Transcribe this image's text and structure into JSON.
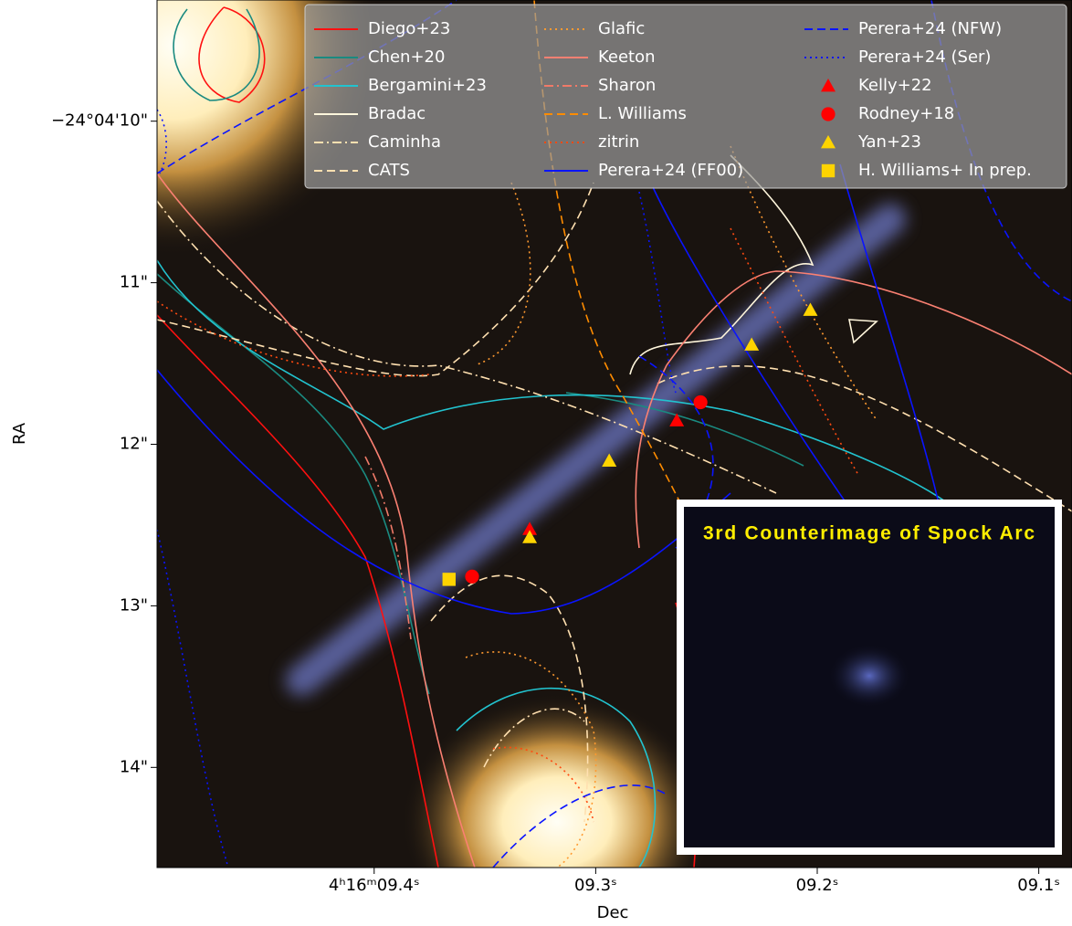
{
  "chart_data": {
    "type": "scatter",
    "x_label": "Dec",
    "y_label": "RA",
    "annotation": "3rd Counterimage of Spock Arc",
    "xlim": [
      9.498,
      9.085
    ],
    "ylim": [
      14.62,
      9.25
    ],
    "xticks": [
      {
        "value": 9.4,
        "label": "4ʰ16ᵐ09.4ˢ"
      },
      {
        "value": 9.3,
        "label": "09.3ˢ"
      },
      {
        "value": 9.2,
        "label": "09.2ˢ"
      },
      {
        "value": 9.1,
        "label": "09.1ˢ"
      }
    ],
    "yticks": [
      {
        "value": 10,
        "label": "−24°04'10\""
      },
      {
        "value": 11,
        "label": "11\""
      },
      {
        "value": 12,
        "label": "12\""
      },
      {
        "value": 13,
        "label": "13\""
      },
      {
        "value": 14,
        "label": "14\""
      }
    ],
    "series": [
      {
        "name": "Diego+23",
        "color": "#ff1010",
        "style": "solid"
      },
      {
        "name": "Chen+20",
        "color": "#1a8a80",
        "style": "solid"
      },
      {
        "name": "Bergamini+23",
        "color": "#22c3cf",
        "style": "solid"
      },
      {
        "name": "Bradac",
        "color": "#fff6dc",
        "style": "solid"
      },
      {
        "name": "Caminha",
        "color": "#ffe0b0",
        "style": "dashdot"
      },
      {
        "name": "CATS",
        "color": "#ffe0b0",
        "style": "dashed"
      },
      {
        "name": "Glafic",
        "color": "#ff9a30",
        "style": "dotted"
      },
      {
        "name": "Keeton",
        "color": "#fa8072",
        "style": "solid"
      },
      {
        "name": "Sharon",
        "color": "#f07a68",
        "style": "dashdot"
      },
      {
        "name": "L. Williams",
        "color": "#ff8c00",
        "style": "dashed"
      },
      {
        "name": "zitrin",
        "color": "#ff4a10",
        "style": "dotted"
      },
      {
        "name": "Perera+24 (FF00)",
        "color": "#0a14ff",
        "style": "solid"
      },
      {
        "name": "Perera+24 (NFW)",
        "color": "#0a14ff",
        "style": "dashed"
      },
      {
        "name": "Perera+24 (Ser)",
        "color": "#0a14ff",
        "style": "dotted"
      },
      {
        "name": "Kelly+22",
        "color": "#ff0000",
        "marker": "triangle",
        "x": [
          9.2634,
          9.3298
        ],
        "y": [
          11.853,
          12.525
        ]
      },
      {
        "name": "Rodney+18",
        "color": "#ff0000",
        "marker": "circle",
        "x": [
          9.2527,
          9.3558
        ],
        "y": [
          11.74,
          12.819
        ]
      },
      {
        "name": "Yan+23",
        "color": "#ffd400",
        "marker": "triangle",
        "x": [
          9.2031,
          9.2296,
          9.2939,
          9.3298
        ],
        "y": [
          11.169,
          11.384,
          12.102,
          12.576
        ]
      },
      {
        "name": "H. Williams+ In prep.",
        "color": "#ffd400",
        "marker": "square",
        "x": [
          9.3662
        ],
        "y": [
          12.836
        ]
      }
    ]
  }
}
